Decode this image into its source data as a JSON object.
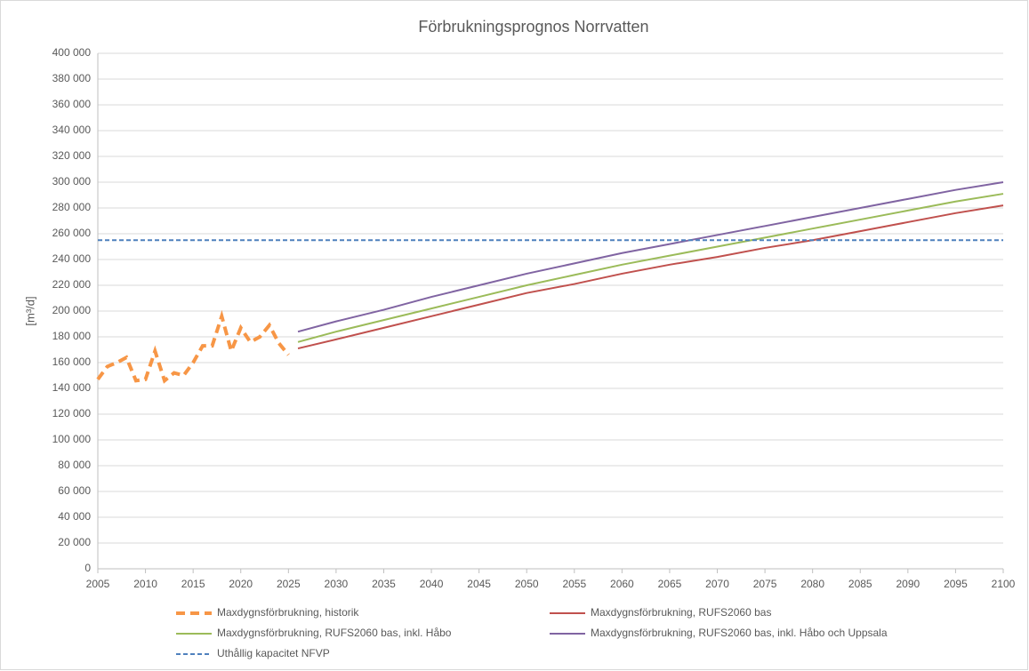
{
  "chart_data": {
    "type": "line",
    "title": "Förbrukningsprognos Norrvatten",
    "y_label": "[m³/d]",
    "xlim": [
      2005,
      2100
    ],
    "xticks": [
      2005,
      2010,
      2015,
      2020,
      2025,
      2030,
      2035,
      2040,
      2045,
      2050,
      2055,
      2060,
      2065,
      2070,
      2075,
      2080,
      2085,
      2090,
      2095,
      2100
    ],
    "ylim": [
      0,
      400000
    ],
    "yticks": [
      0,
      {
        "value": 20000,
        "label": "20 000"
      },
      {
        "value": 40000,
        "label": "40 000"
      },
      {
        "value": 60000,
        "label": "60 000"
      },
      {
        "value": 80000,
        "label": "80 000"
      },
      {
        "value": 100000,
        "label": "100 000"
      },
      {
        "value": 120000,
        "label": "120 000"
      },
      {
        "value": 140000,
        "label": "140 000"
      },
      {
        "value": 160000,
        "label": "160 000"
      },
      {
        "value": 180000,
        "label": "180 000"
      },
      {
        "value": 200000,
        "label": "200 000"
      },
      {
        "value": 220000,
        "label": "220 000"
      },
      {
        "value": 240000,
        "label": "240 000"
      },
      {
        "value": 260000,
        "label": "260 000"
      },
      {
        "value": 280000,
        "label": "280 000"
      },
      {
        "value": 300000,
        "label": "300 000"
      },
      {
        "value": 320000,
        "label": "320 000"
      },
      {
        "value": 340000,
        "label": "340 000"
      },
      {
        "value": 360000,
        "label": "360 000"
      },
      {
        "value": 380000,
        "label": "380 000"
      },
      {
        "value": 400000,
        "label": "400 000"
      }
    ],
    "grid": true,
    "series": [
      {
        "name": "Maxdygnsförbrukning, historik",
        "color": "#f79646",
        "dashed": true,
        "x": [
          2005,
          2006,
          2007,
          2008,
          2009,
          2010,
          2011,
          2012,
          2013,
          2014,
          2015,
          2016,
          2017,
          2018,
          2019,
          2020,
          2021,
          2022,
          2023,
          2024,
          2025
        ],
        "values": [
          147000,
          157000,
          160000,
          164000,
          146000,
          147000,
          169000,
          146000,
          152000,
          150000,
          160000,
          173000,
          173000,
          196000,
          169000,
          187000,
          176000,
          180000,
          189000,
          175000,
          166000
        ]
      },
      {
        "name": "Maxdygnsförbrukning, RUFS2060 bas",
        "color": "#c0504d",
        "x": [
          2026,
          2030,
          2035,
          2040,
          2045,
          2050,
          2055,
          2060,
          2065,
          2070,
          2075,
          2080,
          2085,
          2090,
          2095,
          2100
        ],
        "values": [
          171000,
          178000,
          187000,
          196000,
          205000,
          214000,
          221000,
          229000,
          236000,
          242000,
          249000,
          255000,
          262000,
          269000,
          276000,
          282000
        ]
      },
      {
        "name": "Maxdygnsförbrukning, RUFS2060 bas, inkl. Håbo",
        "color": "#9bbb59",
        "x": [
          2026,
          2030,
          2035,
          2040,
          2045,
          2050,
          2055,
          2060,
          2065,
          2070,
          2075,
          2080,
          2085,
          2090,
          2095,
          2100
        ],
        "values": [
          176000,
          184000,
          193000,
          202000,
          211000,
          220000,
          228000,
          236000,
          243000,
          250000,
          257000,
          264000,
          271000,
          278000,
          285000,
          291000
        ]
      },
      {
        "name": "Maxdygnsförbrukning, RUFS2060 bas, inkl. Håbo och Uppsala",
        "color": "#8064a2",
        "x": [
          2026,
          2030,
          2035,
          2040,
          2045,
          2050,
          2055,
          2060,
          2065,
          2070,
          2075,
          2080,
          2085,
          2090,
          2095,
          2100
        ],
        "values": [
          184000,
          192000,
          201000,
          211000,
          220000,
          229000,
          237000,
          245000,
          252000,
          259000,
          266000,
          273000,
          280000,
          287000,
          294000,
          300000
        ]
      },
      {
        "name": "Uthållig kapacitet NFVP",
        "color": "#4f81bd",
        "dashed": true,
        "x": [
          2005,
          2100
        ],
        "values": [
          255000,
          255000
        ]
      }
    ]
  }
}
